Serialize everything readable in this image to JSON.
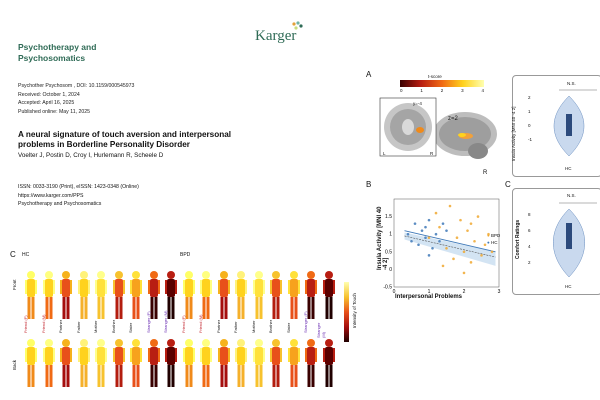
{
  "header": {
    "journal_line1": "Psychotherapy and",
    "journal_line2": "Psychosomatics",
    "publisher": "Karger"
  },
  "meta": {
    "doi_line": "Psychother Psychosom , DOI: 10.1159/000545973",
    "received": "Received: October 1, 2024",
    "accepted": "Accepted: April 16, 2025",
    "published": "Published online: May 11, 2025"
  },
  "article": {
    "title": "A neural signature of touch aversion and interpersonal problems in Borderline Personality Disorder",
    "authors": "Voelter J,  Postin D,  Croy I,  Hurlemann R,  Scheele D"
  },
  "issn": {
    "issn_line": "ISSN: 0033-3190 (Print), eISSN: 1423-0348 (Online)",
    "url": "https://www.karger.com/PPS",
    "journal": "Psychotherapy and Psychosomatics"
  },
  "panel_a": {
    "label": "A",
    "colorbar_title": "t-score",
    "colorbar_ticks": [
      "0",
      "1",
      "2",
      "3",
      "4"
    ],
    "slice_label_y": "y=-4",
    "slice_label_z": "z=2",
    "left": "L",
    "right": "R",
    "right_inner": "R",
    "violin_ylabel": "Insula Activity [MNI 40 -4 2]",
    "violin_xlabel": "HC",
    "violin_yticks": [
      "2",
      "1",
      "0",
      "-1"
    ],
    "sig_ns": "N.S."
  },
  "panel_b": {
    "label": "B",
    "xlabel": "Interpersonal Problems",
    "ylabel": "Insula Activity [MNI 40 -4 2]",
    "legend": [
      "BPD",
      "HC"
    ]
  },
  "panel_c_right": {
    "label": "C",
    "ylabel": "Comfort Ratings",
    "xlabel": "HC",
    "yticks": [
      "8",
      "6",
      "4",
      "2"
    ],
    "sig_ns": "N.S."
  },
  "panel_c_bodies": {
    "label": "C",
    "group_hc": "HC",
    "group_bpd": "BPD",
    "row_front": "Front",
    "row_back": "Back",
    "colorbar_label": "Intensity of Touch",
    "names": [
      "Friend (F)",
      "Friend (M)",
      "Partner",
      "Father",
      "Mother",
      "Brother",
      "Sister",
      "Stranger (F)",
      "Stranger (M)",
      "Friend (F)",
      "Friend (M)",
      "Partner",
      "Father",
      "Mother",
      "Brother",
      "Sister",
      "Stranger (F)",
      "Stranger (M)"
    ]
  },
  "chart_data": [
    {
      "type": "scatter",
      "title": "",
      "xlabel": "Interpersonal Problems",
      "ylabel": "Insula Activity [MNI 40 -4 2]",
      "xlim": [
        0,
        3
      ],
      "ylim": [
        -0.5,
        2
      ],
      "xticks": [
        0,
        1,
        2,
        3
      ],
      "yticks": [
        -0.5,
        0,
        0.5,
        1,
        1.5
      ],
      "series": [
        {
          "name": "BPD",
          "color": "#f0a830",
          "points": [
            [
              1.0,
              0.9
            ],
            [
              1.3,
              1.2
            ],
            [
              1.5,
              0.6
            ],
            [
              1.6,
              1.8
            ],
            [
              1.7,
              0.3
            ],
            [
              1.8,
              0.9
            ],
            [
              1.9,
              1.4
            ],
            [
              2.0,
              0.5
            ],
            [
              2.1,
              1.1
            ],
            [
              2.2,
              0.2
            ],
            [
              2.3,
              0.8
            ],
            [
              2.4,
              1.5
            ],
            [
              2.5,
              0.4
            ],
            [
              2.6,
              0.7
            ],
            [
              2.7,
              1.0
            ],
            [
              1.4,
              0.1
            ],
            [
              2.0,
              -0.1
            ],
            [
              2.8,
              0.5
            ],
            [
              1.2,
              1.6
            ],
            [
              2.2,
              1.3
            ]
          ]
        },
        {
          "name": "HC",
          "color": "#3f79b8",
          "points": [
            [
              0.4,
              1.0
            ],
            [
              0.6,
              1.3
            ],
            [
              0.7,
              0.7
            ],
            [
              0.8,
              1.1
            ],
            [
              0.9,
              0.9
            ],
            [
              1.0,
              1.4
            ],
            [
              1.1,
              0.6
            ],
            [
              1.2,
              1.0
            ],
            [
              0.5,
              0.8
            ],
            [
              1.3,
              0.8
            ],
            [
              0.9,
              1.2
            ],
            [
              1.5,
              1.1
            ],
            [
              1.0,
              0.4
            ],
            [
              1.4,
              1.3
            ]
          ]
        }
      ]
    },
    {
      "type": "bar",
      "title": "",
      "xlabel": "HC",
      "ylabel": "Insula Activity [MNI 40 -4 2]",
      "categories": [
        "HC"
      ],
      "values": [
        1.0
      ],
      "ylim": [
        -1,
        2
      ]
    },
    {
      "type": "bar",
      "title": "",
      "xlabel": "HC",
      "ylabel": "Comfort Ratings",
      "categories": [
        "HC"
      ],
      "values": [
        6.5
      ],
      "ylim": [
        1,
        9
      ]
    }
  ]
}
